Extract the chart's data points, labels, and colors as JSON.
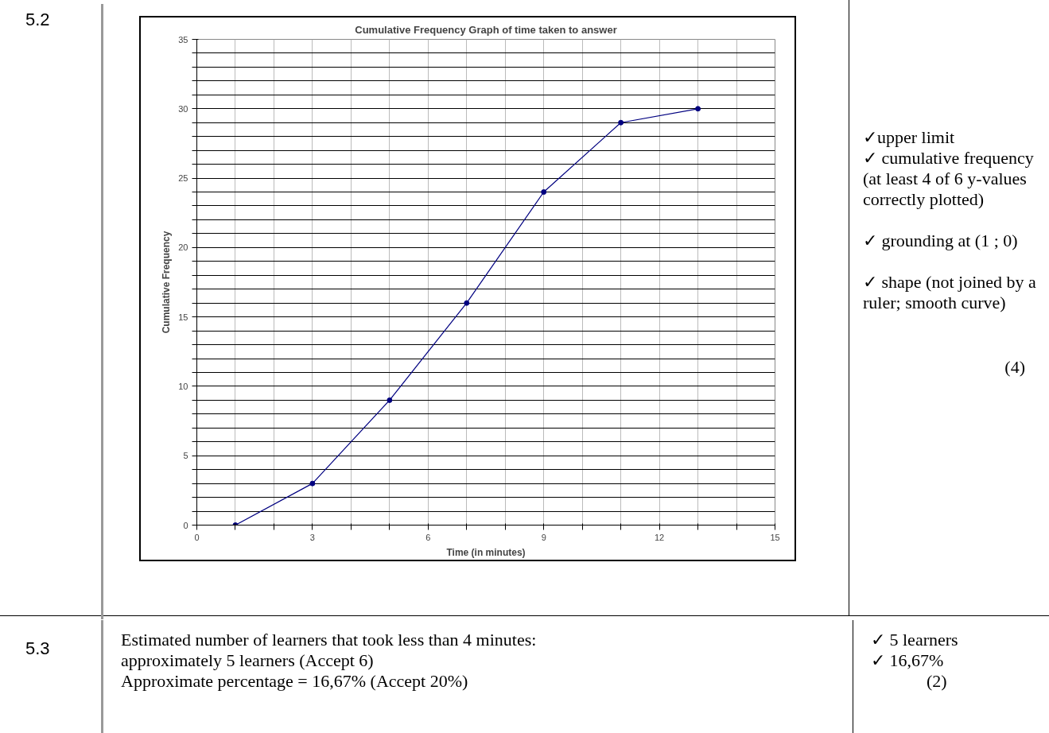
{
  "chart_data": {
    "type": "line",
    "title": "Cumulative Frequency Graph of time taken to answer",
    "xlabel": "Time (in minutes)",
    "ylabel": "Cumulative Frequency",
    "x": [
      1,
      3,
      5,
      7,
      9,
      11,
      13
    ],
    "series": [
      {
        "color": "#000080",
        "values": [
          0,
          3,
          9,
          16,
          24,
          29,
          30
        ]
      }
    ],
    "xlim": [
      0,
      15
    ],
    "ylim": [
      0,
      35
    ],
    "xticks": [
      0,
      {
        "value": 1,
        "label": null
      },
      {
        "value": 2,
        "label": null
      },
      3,
      {
        "value": 4,
        "label": null
      },
      {
        "value": 5,
        "label": null
      },
      6,
      {
        "value": 7,
        "label": null
      },
      {
        "value": 8,
        "label": null
      },
      9,
      {
        "value": 10,
        "label": null
      },
      {
        "value": 11,
        "label": null
      },
      12,
      {
        "value": 13,
        "label": null
      },
      {
        "value": 14,
        "label": null
      },
      15
    ],
    "yticks": [
      0,
      {
        "value": 1,
        "label": null
      },
      {
        "value": 2,
        "label": null
      },
      {
        "value": 3,
        "label": null
      },
      {
        "value": 4,
        "label": null
      },
      5,
      {
        "value": 6,
        "label": null
      },
      {
        "value": 7,
        "label": null
      },
      {
        "value": 8,
        "label": null
      },
      {
        "value": 9,
        "label": null
      },
      10,
      {
        "value": 11,
        "label": null
      },
      {
        "value": 12,
        "label": null
      },
      {
        "value": 13,
        "label": null
      },
      {
        "value": 14,
        "label": null
      },
      15,
      {
        "value": 16,
        "label": null
      },
      {
        "value": 17,
        "label": null
      },
      {
        "value": 18,
        "label": null
      },
      {
        "value": 19,
        "label": null
      },
      20,
      {
        "value": 21,
        "label": null
      },
      {
        "value": 22,
        "label": null
      },
      {
        "value": 23,
        "label": null
      },
      {
        "value": 24,
        "label": null
      },
      25,
      {
        "value": 26,
        "label": null
      },
      {
        "value": 27,
        "label": null
      },
      {
        "value": 28,
        "label": null
      },
      {
        "value": 29,
        "label": null
      },
      30,
      {
        "value": 31,
        "label": null
      },
      {
        "value": 32,
        "label": null
      },
      {
        "value": 33,
        "label": null
      },
      {
        "value": 34,
        "label": null
      },
      35
    ],
    "grid": true,
    "marker": "circle",
    "line_style": "solid",
    "annotations": [
      "5.2",
      "✓upper limit",
      "✓ cumulative frequency (at least 4 of 6 y-values correctly plotted)",
      "✓ grounding at (1 ; 0)",
      "✓ shape (not joined by a ruler; smooth curve)",
      "(4)",
      "5.3",
      "Estimated number of learners that took less than 4 minutes:",
      "approximately 5 learners   (Accept 6)",
      "Approximate percentage = 16,67%  (Accept 20%)",
      "✓  5 learners",
      "✓ 16,67%",
      "(2)"
    ]
  }
}
